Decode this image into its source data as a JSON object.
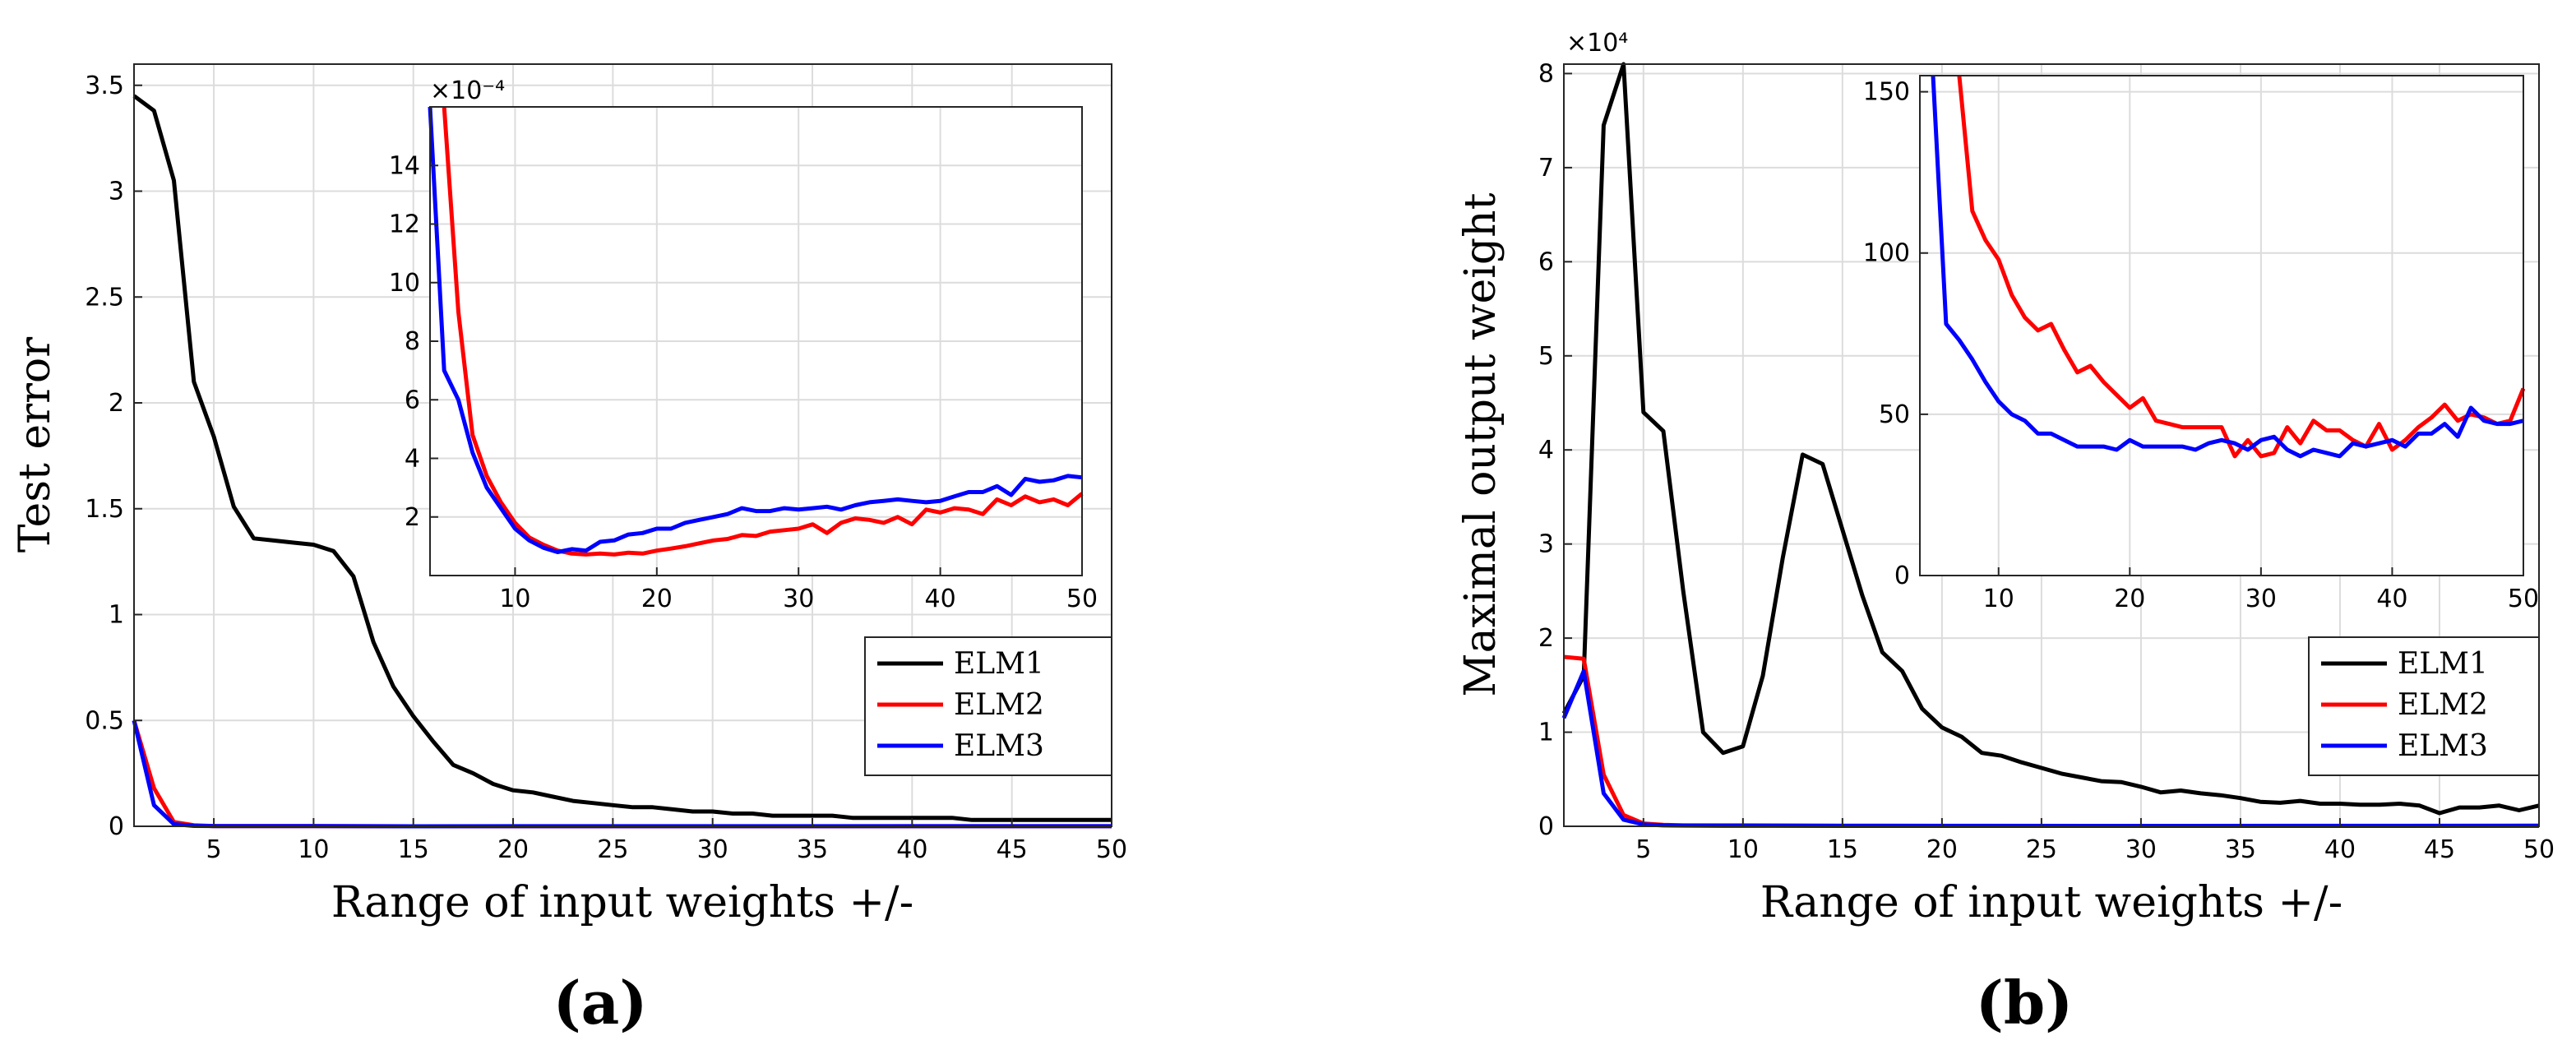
{
  "figure": {
    "panel_a_label": "(a)",
    "panel_b_label": "(b)"
  },
  "chart_data": [
    {
      "id": "a-main",
      "type": "line",
      "title": "",
      "xlabel": "Range of input weights +/-",
      "ylabel": "Test error",
      "xlim": [
        1,
        50
      ],
      "ylim": [
        0,
        3.6
      ],
      "grid": true,
      "legend_position": "bottom-right",
      "x_ticks": [
        5,
        10,
        15,
        20,
        25,
        30,
        35,
        40,
        45,
        50
      ],
      "y_ticks": [
        0,
        0.5,
        1,
        1.5,
        2,
        2.5,
        3,
        3.5
      ],
      "series": [
        {
          "name": "ELM1",
          "color": "#000000",
          "x": [
            1,
            2,
            3,
            4,
            5,
            6,
            7,
            8,
            9,
            10,
            11,
            12,
            13,
            14,
            15,
            16,
            17,
            18,
            19,
            20,
            21,
            22,
            23,
            24,
            25,
            26,
            27,
            28,
            29,
            30,
            31,
            32,
            33,
            34,
            35,
            36,
            37,
            38,
            39,
            40,
            41,
            42,
            43,
            44,
            45,
            46,
            47,
            48,
            49,
            50
          ],
          "values": [
            3.45,
            3.38,
            3.05,
            2.1,
            1.84,
            1.51,
            1.36,
            1.35,
            1.34,
            1.33,
            1.3,
            1.18,
            0.87,
            0.66,
            0.52,
            0.4,
            0.29,
            0.25,
            0.2,
            0.17,
            0.16,
            0.14,
            0.12,
            0.11,
            0.1,
            0.09,
            0.09,
            0.08,
            0.07,
            0.07,
            0.06,
            0.06,
            0.05,
            0.05,
            0.05,
            0.05,
            0.04,
            0.04,
            0.04,
            0.04,
            0.04,
            0.04,
            0.03,
            0.03,
            0.03,
            0.03,
            0.03,
            0.03,
            0.03,
            0.03
          ]
        },
        {
          "name": "ELM2",
          "color": "#ff0000",
          "x": [
            1,
            2,
            3,
            4,
            5,
            6,
            7,
            8,
            9,
            10,
            15,
            20,
            30,
            40,
            50
          ],
          "values": [
            0.5,
            0.18,
            0.02,
            0.005,
            0.001,
            0.001,
            0.001,
            0.001,
            0.001,
            0.001,
            0.0001,
            0.0001,
            0.0001,
            0.0002,
            0.0003
          ]
        },
        {
          "name": "ELM3",
          "color": "#0000ff",
          "x": [
            1,
            2,
            3,
            4,
            5,
            6,
            7,
            8,
            9,
            10,
            15,
            20,
            30,
            40,
            50
          ],
          "values": [
            0.5,
            0.1,
            0.01,
            0.002,
            0.001,
            0.001,
            0.001,
            0.001,
            0.001,
            0.001,
            0.0001,
            0.0002,
            0.0002,
            0.0003,
            0.0003
          ]
        }
      ]
    },
    {
      "id": "a-inset",
      "type": "line",
      "title": "",
      "xlabel": "",
      "ylabel": "",
      "y_multiplier": "×10⁻⁴",
      "xlim": [
        4,
        50
      ],
      "ylim": [
        0,
        16
      ],
      "grid": true,
      "x_ticks": [
        10,
        20,
        30,
        40,
        50
      ],
      "y_ticks": [
        2,
        4,
        6,
        8,
        10,
        12,
        14
      ],
      "series": [
        {
          "name": "ELM2",
          "color": "#ff0000",
          "x": [
            5,
            6,
            7,
            8,
            9,
            10,
            11,
            12,
            13,
            14,
            15,
            16,
            17,
            18,
            19,
            20,
            21,
            22,
            23,
            24,
            25,
            26,
            27,
            28,
            29,
            30,
            31,
            32,
            33,
            34,
            35,
            36,
            37,
            38,
            39,
            40,
            41,
            42,
            43,
            44,
            45,
            46,
            47,
            48,
            49,
            50
          ],
          "values": [
            16,
            9,
            4.8,
            3.4,
            2.5,
            1.8,
            1.3,
            1.05,
            0.85,
            0.75,
            0.72,
            0.75,
            0.72,
            0.78,
            0.75,
            0.85,
            0.92,
            1.0,
            1.1,
            1.2,
            1.25,
            1.38,
            1.35,
            1.5,
            1.55,
            1.6,
            1.75,
            1.45,
            1.8,
            1.95,
            1.9,
            1.8,
            2.0,
            1.75,
            2.25,
            2.15,
            2.3,
            2.25,
            2.1,
            2.6,
            2.4,
            2.7,
            2.5,
            2.6,
            2.4,
            2.8
          ]
        },
        {
          "name": "ELM3",
          "color": "#0000ff",
          "x": [
            4,
            5,
            6,
            7,
            8,
            9,
            10,
            11,
            12,
            13,
            14,
            15,
            16,
            17,
            18,
            19,
            20,
            21,
            22,
            23,
            24,
            25,
            26,
            27,
            28,
            29,
            30,
            31,
            32,
            33,
            34,
            35,
            36,
            37,
            38,
            39,
            40,
            41,
            42,
            43,
            44,
            45,
            46,
            47,
            48,
            49,
            50
          ],
          "values": [
            16,
            7,
            6,
            4.2,
            3.0,
            2.3,
            1.6,
            1.2,
            0.95,
            0.8,
            0.9,
            0.85,
            1.15,
            1.2,
            1.4,
            1.45,
            1.6,
            1.6,
            1.8,
            1.9,
            2.0,
            2.1,
            2.3,
            2.2,
            2.2,
            2.3,
            2.25,
            2.3,
            2.35,
            2.25,
            2.4,
            2.5,
            2.55,
            2.6,
            2.55,
            2.5,
            2.55,
            2.7,
            2.85,
            2.85,
            3.05,
            2.75,
            3.3,
            3.2,
            3.25,
            3.4,
            3.35
          ]
        }
      ]
    },
    {
      "id": "b-main",
      "type": "line",
      "title": "",
      "xlabel": "Range of input weights +/-",
      "ylabel": "Maximal output weight",
      "y_multiplier": "×10⁴",
      "xlim": [
        1,
        50
      ],
      "ylim": [
        0,
        8.1
      ],
      "grid": true,
      "legend_position": "bottom-right",
      "x_ticks": [
        5,
        10,
        15,
        20,
        25,
        30,
        35,
        40,
        45,
        50
      ],
      "y_ticks": [
        0,
        1,
        2,
        3,
        4,
        5,
        6,
        7,
        8
      ],
      "series": [
        {
          "name": "ELM1",
          "color": "#000000",
          "x": [
            1,
            2,
            3,
            4,
            5,
            6,
            7,
            8,
            9,
            10,
            11,
            12,
            13,
            14,
            15,
            16,
            17,
            18,
            19,
            20,
            21,
            22,
            23,
            24,
            25,
            26,
            27,
            28,
            29,
            30,
            31,
            32,
            33,
            34,
            35,
            36,
            37,
            38,
            39,
            40,
            41,
            42,
            43,
            44,
            45,
            46,
            47,
            48,
            49,
            50
          ],
          "values": [
            1.2,
            1.6,
            7.45,
            8.1,
            4.4,
            4.2,
            2.5,
            1.0,
            0.78,
            0.85,
            1.6,
            2.85,
            3.95,
            3.85,
            3.15,
            2.45,
            1.85,
            1.65,
            1.25,
            1.05,
            0.95,
            0.78,
            0.75,
            0.68,
            0.62,
            0.56,
            0.52,
            0.48,
            0.47,
            0.42,
            0.36,
            0.38,
            0.35,
            0.33,
            0.3,
            0.26,
            0.25,
            0.27,
            0.24,
            0.24,
            0.23,
            0.23,
            0.24,
            0.22,
            0.14,
            0.2,
            0.2,
            0.22,
            0.17,
            0.22
          ]
        },
        {
          "name": "ELM2",
          "color": "#ff0000",
          "x": [
            1,
            2,
            3,
            4,
            5,
            6,
            7,
            8,
            9,
            10,
            15,
            20,
            30,
            40,
            50
          ],
          "values": [
            1.8,
            1.78,
            0.55,
            0.12,
            0.03,
            0.015,
            0.01,
            0.01,
            0.01,
            0.01,
            0.007,
            0.005,
            0.004,
            0.005,
            0.006
          ]
        },
        {
          "name": "ELM3",
          "color": "#0000ff",
          "x": [
            1,
            2,
            3,
            4,
            5,
            6,
            7,
            8,
            9,
            10,
            15,
            20,
            30,
            40,
            50
          ],
          "values": [
            1.15,
            1.65,
            0.35,
            0.07,
            0.02,
            0.01,
            0.008,
            0.006,
            0.005,
            0.005,
            0.004,
            0.004,
            0.004,
            0.004,
            0.005
          ]
        }
      ]
    },
    {
      "id": "b-inset",
      "type": "line",
      "title": "",
      "xlabel": "",
      "ylabel": "",
      "xlim": [
        4,
        50
      ],
      "ylim": [
        0,
        155
      ],
      "grid": true,
      "x_ticks": [
        10,
        20,
        30,
        40,
        50
      ],
      "y_ticks": [
        0,
        50,
        100,
        150
      ],
      "series": [
        {
          "name": "ELM2",
          "color": "#ff0000",
          "x": [
            7,
            8,
            9,
            10,
            11,
            12,
            13,
            14,
            15,
            16,
            17,
            18,
            19,
            20,
            21,
            22,
            23,
            24,
            25,
            26,
            27,
            28,
            29,
            30,
            31,
            32,
            33,
            34,
            35,
            36,
            37,
            38,
            39,
            40,
            41,
            42,
            43,
            44,
            45,
            46,
            47,
            48,
            49,
            50
          ],
          "values": [
            155,
            113,
            104,
            98,
            87,
            80,
            76,
            78,
            70,
            63,
            65,
            60,
            56,
            52,
            55,
            48,
            47,
            46,
            46,
            46,
            46,
            37,
            42,
            37,
            38,
            46,
            41,
            48,
            45,
            45,
            42,
            40,
            47,
            39,
            42,
            46,
            49,
            53,
            48,
            50,
            49,
            47,
            48,
            58
          ]
        },
        {
          "name": "ELM3",
          "color": "#0000ff",
          "x": [
            5,
            6,
            7,
            8,
            9,
            10,
            11,
            12,
            13,
            14,
            15,
            16,
            17,
            18,
            19,
            20,
            21,
            22,
            23,
            24,
            25,
            26,
            27,
            28,
            29,
            30,
            31,
            32,
            33,
            34,
            35,
            36,
            37,
            38,
            39,
            40,
            41,
            42,
            43,
            44,
            45,
            46,
            47,
            48,
            49,
            50
          ],
          "values": [
            155,
            78,
            73,
            67,
            60,
            54,
            50,
            48,
            44,
            44,
            42,
            40,
            40,
            40,
            39,
            42,
            40,
            40,
            40,
            40,
            39,
            41,
            42,
            41,
            39,
            42,
            43,
            39,
            37,
            39,
            38,
            37,
            41,
            40,
            41,
            42,
            40,
            44,
            44,
            47,
            43,
            52,
            48,
            47,
            47,
            48
          ]
        }
      ]
    }
  ]
}
